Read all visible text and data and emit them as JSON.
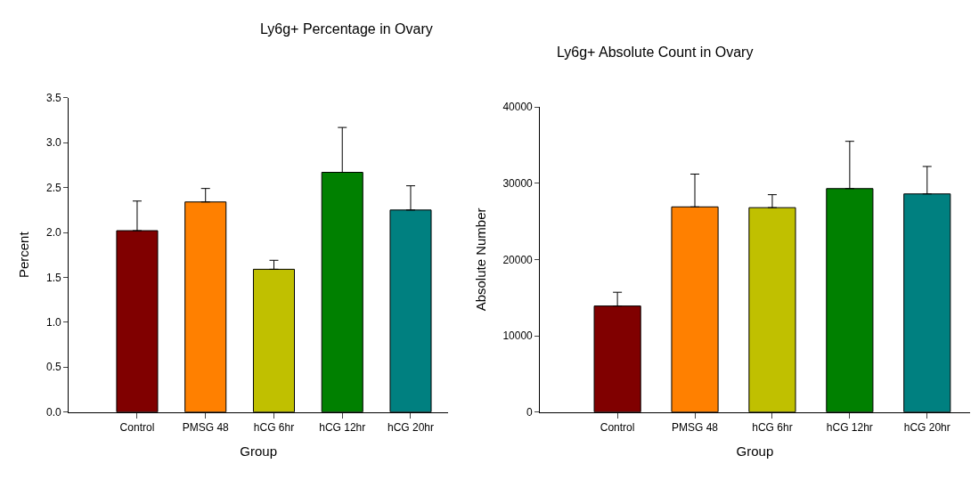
{
  "chart_data": [
    {
      "type": "bar",
      "title": "Ly6g+ Percentage in Ovary",
      "xlabel": "Group",
      "ylabel": "Percent",
      "categories": [
        "Control",
        "PMSG 48",
        "hCG 6hr",
        "hCG 12hr",
        "hCG 20hr"
      ],
      "values": [
        2.02,
        2.34,
        1.59,
        2.67,
        2.25
      ],
      "colors": [
        "#800000",
        "#ff8000",
        "#c0c000",
        "#008000",
        "#008080"
      ],
      "errors": [
        [
          2.02,
          2.35
        ],
        [
          2.34,
          2.49
        ],
        [
          1.59,
          1.69
        ],
        [
          2.67,
          3.17
        ],
        [
          2.25,
          2.52
        ]
      ],
      "ylim": [
        0,
        3.5
      ],
      "yticks": [
        {
          "value": 0,
          "label": "0.0"
        },
        0.5,
        {
          "value": 1,
          "label": "1.0"
        },
        1.5,
        {
          "value": 2,
          "label": "2.0"
        },
        2.5,
        {
          "value": 3,
          "label": "3.0"
        },
        3.5
      ]
    },
    {
      "type": "bar",
      "title": "Ly6g+ Absolute Count in Ovary",
      "xlabel": "Group",
      "ylabel": "Absolute Number",
      "categories": [
        "Control",
        "PMSG 48",
        "hCG 6hr",
        "hCG 12hr",
        "hCG 20hr"
      ],
      "values": [
        13900,
        26900,
        26800,
        29300,
        28600
      ],
      "colors": [
        "#800000",
        "#ff8000",
        "#c0c000",
        "#008000",
        "#008080"
      ],
      "errors": [
        [
          13900,
          15700
        ],
        [
          26900,
          31200
        ],
        [
          26800,
          28500
        ],
        [
          29300,
          35500
        ],
        [
          28600,
          32200
        ]
      ],
      "ylim": [
        0,
        40000
      ],
      "yticks": [
        0,
        10000,
        20000,
        30000,
        40000
      ]
    }
  ]
}
